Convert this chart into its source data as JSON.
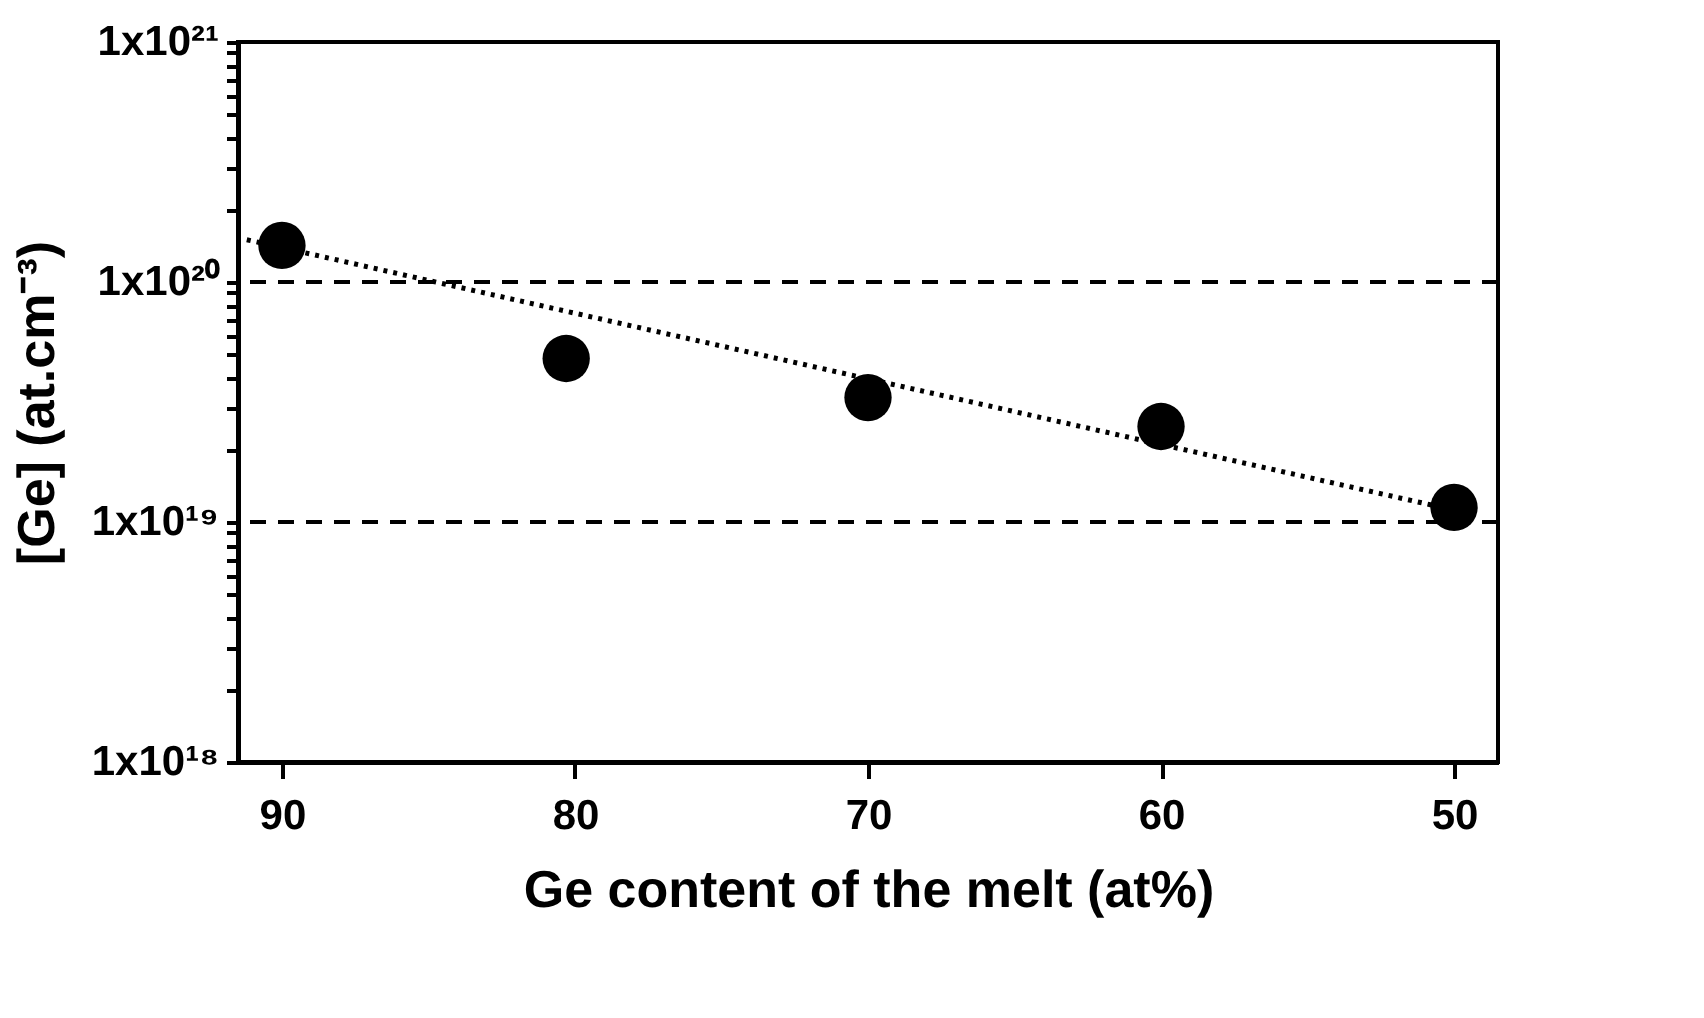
{
  "chart_data": {
    "type": "scatter",
    "xlabel": "Ge content of the melt (at%)",
    "ylabel": "[Ge] (at.cm⁻³)",
    "log": "y",
    "grid": false,
    "legend": false,
    "marker": "circle",
    "xlim": [
      91.5,
      48.5
    ],
    "xticks": [
      90,
      80,
      70,
      60,
      50
    ],
    "ylim": [
      1e+18,
      1e+21
    ],
    "yticks": [
      {
        "value": 1e+18,
        "label": "1x10¹⁸"
      },
      {
        "value": 2e+18,
        "label": null
      },
      {
        "value": 3e+18,
        "label": null
      },
      {
        "value": 4e+18,
        "label": null
      },
      {
        "value": 5e+18,
        "label": null
      },
      {
        "value": 6e+18,
        "label": null
      },
      {
        "value": 7e+18,
        "label": null
      },
      {
        "value": 8e+18,
        "label": null
      },
      {
        "value": 9e+18,
        "label": null
      },
      {
        "value": 1e+19,
        "label": "1x10¹⁹"
      },
      {
        "value": 2e+19,
        "label": null
      },
      {
        "value": 3e+19,
        "label": null
      },
      {
        "value": 4e+19,
        "label": null
      },
      {
        "value": 5e+19,
        "label": null
      },
      {
        "value": 6e+19,
        "label": null
      },
      {
        "value": 7e+19,
        "label": null
      },
      {
        "value": 8e+19,
        "label": null
      },
      {
        "value": 9e+19,
        "label": null
      },
      {
        "value": 1e+20,
        "label": "1x10²⁰"
      },
      {
        "value": 2e+20,
        "label": null
      },
      {
        "value": 3e+20,
        "label": null
      },
      {
        "value": 4e+20,
        "label": null
      },
      {
        "value": 5e+20,
        "label": null
      },
      {
        "value": 6e+20,
        "label": null
      },
      {
        "value": 7e+20,
        "label": null
      },
      {
        "value": 8e+20,
        "label": null
      },
      {
        "value": 9e+20,
        "label": null
      },
      {
        "value": 1e+21,
        "label": "1x10²¹"
      }
    ],
    "series": [
      {
        "color": "#000000",
        "x": [
          90,
          80.3,
          70,
          60,
          50
        ],
        "values": [
          1.42e+20,
          4.8e+19,
          3.3e+19,
          2.5e+19,
          1.15e+19
        ]
      },
      {
        "type": "line",
        "color": "#000000",
        "line_style": "dotted",
        "marker": "none",
        "x": [
          91.2,
          50.4
        ],
        "values": [
          1.5e+20,
          1.15e+19
        ]
      }
    ],
    "ref_lines": [
      {
        "axis": "y",
        "value": 1e+20,
        "color": "#000000",
        "line_style": "dashed"
      },
      {
        "axis": "y",
        "value": 1e+19,
        "color": "#000000",
        "line_style": "dashed"
      }
    ]
  }
}
